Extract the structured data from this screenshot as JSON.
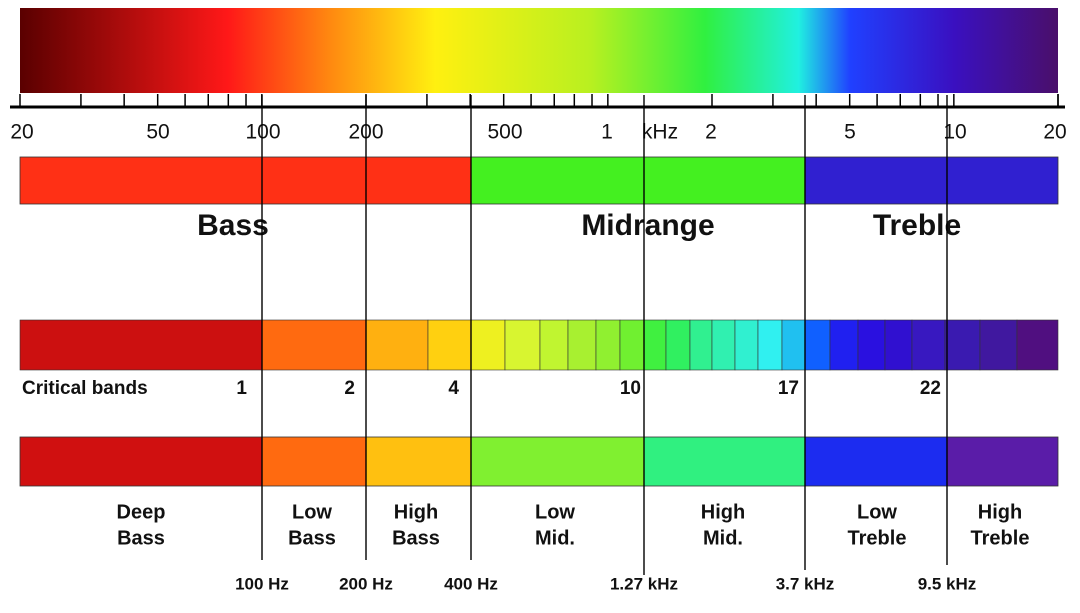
{
  "scale": {
    "labels": [
      "20",
      "50",
      "100",
      "200",
      "500",
      "1",
      "kHz",
      "2",
      "5",
      "10",
      "20"
    ]
  },
  "ranges": [
    {
      "label": "Bass"
    },
    {
      "label": "Midrange"
    },
    {
      "label": "Treble"
    }
  ],
  "critical_bands": {
    "title": "Critical bands",
    "markers": [
      "1",
      "2",
      "4",
      "10",
      "17",
      "22"
    ]
  },
  "sub_bands": [
    {
      "lines": [
        "Deep",
        "Bass"
      ]
    },
    {
      "lines": [
        "Low",
        "Bass"
      ]
    },
    {
      "lines": [
        "High",
        "Bass"
      ]
    },
    {
      "lines": [
        "Low",
        "Mid."
      ]
    },
    {
      "lines": [
        "High",
        "Mid."
      ]
    },
    {
      "lines": [
        "Low",
        "Treble"
      ]
    },
    {
      "lines": [
        "High",
        "Treble"
      ]
    }
  ],
  "boundaries": [
    "100 Hz",
    "200 Hz",
    "400 Hz",
    "1.27 kHz",
    "3.7 kHz",
    "9.5 kHz"
  ]
}
